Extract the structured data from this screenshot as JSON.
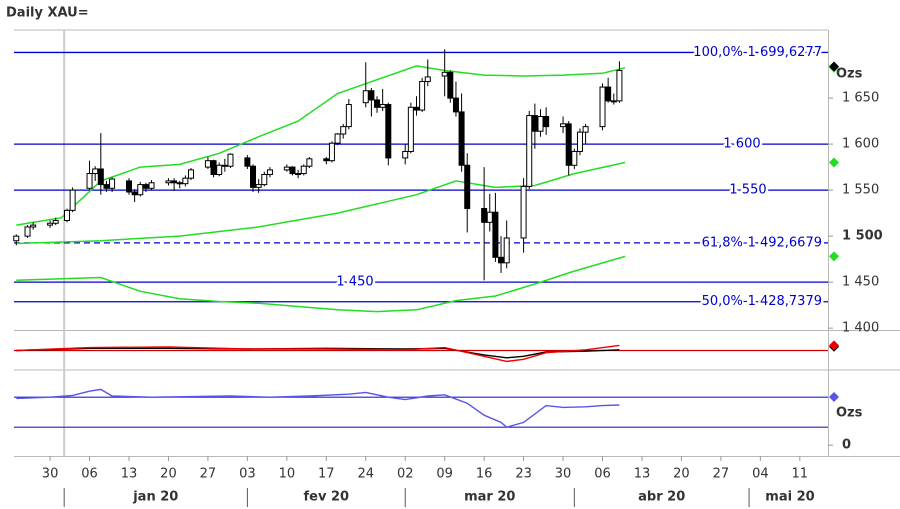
{
  "title": "Daily XAU=",
  "chart_data": [
    {
      "type": "candlestick",
      "x": [
        -6,
        -4,
        -3,
        0,
        1,
        3,
        4,
        7,
        8,
        9,
        10,
        11,
        14,
        15,
        16,
        17,
        18,
        21,
        22,
        23,
        24,
        25,
        28,
        29,
        30,
        31,
        32,
        35,
        36,
        37,
        38,
        39,
        42,
        43,
        44,
        45,
        46,
        49,
        50,
        51,
        52,
        53,
        56,
        57,
        58,
        59,
        60,
        63,
        64,
        65,
        66,
        67,
        70,
        71,
        72,
        73,
        74,
        77,
        78,
        79,
        80,
        81,
        84,
        85,
        86,
        87,
        88,
        91,
        92,
        93,
        94,
        95,
        98,
        99,
        100,
        101
      ],
      "open": [
        1495,
        1500,
        1510,
        1512,
        1514,
        1517,
        1528,
        1552,
        1568,
        1573,
        1556,
        1552,
        1560,
        1548,
        1545,
        1556,
        1552,
        1558,
        1560,
        1558,
        1557,
        1563,
        1575,
        1582,
        1567,
        1577,
        1576,
        1585,
        1576,
        1553,
        1556,
        1567,
        1572,
        1575,
        1568,
        1568,
        1576,
        1584,
        1582,
        1601,
        1611,
        1619,
        1645,
        1658,
        1648,
        1640,
        1643,
        1585,
        1592,
        1640,
        1637,
        1668,
        1674,
        1678,
        1650,
        1635,
        1577,
        1530,
        1515,
        1526,
        1477,
        1471,
        1498,
        1554,
        1631,
        1614,
        1630,
        1619,
        1622,
        1577,
        1592,
        1613,
        1619,
        1662,
        1647,
        1647
      ],
      "high": [
        1502,
        1512,
        1515,
        1517,
        1520,
        1530,
        1553,
        1582,
        1576,
        1612,
        1560,
        1564,
        1563,
        1551,
        1559,
        1558,
        1561,
        1563,
        1563,
        1560,
        1566,
        1574,
        1586,
        1583,
        1580,
        1584,
        1590,
        1588,
        1578,
        1562,
        1570,
        1575,
        1578,
        1576,
        1572,
        1578,
        1586,
        1586,
        1603,
        1612,
        1622,
        1649,
        1689,
        1661,
        1652,
        1660,
        1645,
        1600,
        1645,
        1652,
        1672,
        1692,
        1703,
        1680,
        1668,
        1655,
        1590,
        1575,
        1546,
        1547,
        1500,
        1517,
        1563,
        1636,
        1644,
        1638,
        1640,
        1630,
        1625,
        1595,
        1617,
        1622,
        1666,
        1672,
        1655,
        1690
      ],
      "low": [
        1490,
        1498,
        1507,
        1509,
        1512,
        1515,
        1526,
        1550,
        1560,
        1545,
        1548,
        1548,
        1545,
        1537,
        1543,
        1548,
        1550,
        1555,
        1549,
        1552,
        1554,
        1561,
        1573,
        1564,
        1565,
        1570,
        1574,
        1573,
        1548,
        1547,
        1554,
        1564,
        1570,
        1566,
        1563,
        1566,
        1574,
        1578,
        1580,
        1599,
        1606,
        1616,
        1640,
        1630,
        1634,
        1636,
        1577,
        1578,
        1590,
        1631,
        1635,
        1663,
        1652,
        1645,
        1630,
        1570,
        1504,
        1452,
        1505,
        1472,
        1460,
        1465,
        1482,
        1551,
        1595,
        1608,
        1610,
        1612,
        1566,
        1573,
        1588,
        1600,
        1615,
        1645,
        1643,
        1645
      ],
      "close": [
        1500,
        1510,
        1512,
        1514,
        1517,
        1528,
        1550,
        1568,
        1573,
        1556,
        1552,
        1562,
        1548,
        1545,
        1556,
        1552,
        1558,
        1560,
        1558,
        1557,
        1563,
        1572,
        1582,
        1567,
        1577,
        1576,
        1589,
        1576,
        1553,
        1556,
        1567,
        1572,
        1575,
        1568,
        1568,
        1576,
        1584,
        1582,
        1601,
        1611,
        1619,
        1643,
        1658,
        1648,
        1640,
        1643,
        1585,
        1592,
        1640,
        1637,
        1668,
        1673,
        1678,
        1650,
        1635,
        1577,
        1530,
        1515,
        1526,
        1477,
        1471,
        1498,
        1554,
        1631,
        1614,
        1630,
        1619,
        1622,
        1577,
        1592,
        1613,
        1619,
        1662,
        1647,
        1647,
        1680
      ],
      "bands": [
        {
          "color": "#22dd22",
          "x": [
            -6,
            2,
            9,
            16,
            23,
            30,
            37,
            44,
            51,
            58,
            65,
            70,
            77,
            84,
            91,
            98,
            102
          ],
          "values": [
            1512,
            1520,
            1560,
            1575,
            1578,
            1590,
            1608,
            1625,
            1655,
            1670,
            1685,
            1680,
            1675,
            1674,
            1675,
            1677,
            1683
          ]
        },
        {
          "color": "#22dd22",
          "x": [
            -6,
            9,
            23,
            37,
            51,
            58,
            65,
            72,
            79,
            86,
            93,
            102
          ],
          "values": [
            1492,
            1495,
            1500,
            1510,
            1525,
            1535,
            1545,
            1560,
            1553,
            1555,
            1568,
            1580
          ]
        },
        {
          "color": "#22dd22",
          "x": [
            -6,
            9,
            16,
            23,
            30,
            37,
            51,
            58,
            65,
            72,
            79,
            86,
            93,
            102
          ],
          "values": [
            1452,
            1455,
            1440,
            1432,
            1429,
            1427,
            1420,
            1418,
            1420,
            1430,
            1435,
            1448,
            1462,
            1478
          ]
        }
      ],
      "levels": [
        {
          "value": 1699.6277,
          "label": "100,0%-1 699,6277",
          "style": "solid"
        },
        {
          "value": 1600,
          "label": "1 600",
          "style": "solid"
        },
        {
          "value": 1550,
          "label": "1 550",
          "style": "solid"
        },
        {
          "value": 1492.6679,
          "label": "61,8%-1 492,6679",
          "style": "dashed"
        },
        {
          "value": 1450,
          "label": "1 450",
          "style": "solid"
        },
        {
          "value": 1428.7379,
          "label": "50,0%-1 428,7379",
          "style": "solid"
        }
      ],
      "level_color": "#0000cc",
      "ylim": [
        1398,
        1724
      ],
      "yticks": [
        {
          "value": 1650,
          "label": "1 650"
        },
        {
          "value": 1600,
          "label": "1 600"
        },
        {
          "value": 1550,
          "label": "1 550"
        },
        {
          "value": 1500,
          "label": "1 500"
        },
        {
          "value": 1450,
          "label": "1 450"
        },
        {
          "value": 1400,
          "label": "1 400"
        }
      ],
      "y_unit": "Ozs",
      "xlim": [
        -6.4,
        138
      ],
      "xticks": [
        {
          "value": 0,
          "label": "30"
        },
        {
          "value": 7,
          "label": "06"
        },
        {
          "value": 14,
          "label": "13"
        },
        {
          "value": 21,
          "label": "20"
        },
        {
          "value": 28,
          "label": "27"
        },
        {
          "value": 35,
          "label": "03"
        },
        {
          "value": 42,
          "label": "10"
        },
        {
          "value": 49,
          "label": "17"
        },
        {
          "value": 56,
          "label": "24"
        },
        {
          "value": 63,
          "label": "02"
        },
        {
          "value": 70,
          "label": "09"
        },
        {
          "value": 77,
          "label": "16"
        },
        {
          "value": 84,
          "label": "23"
        },
        {
          "value": 91,
          "label": "30"
        },
        {
          "value": 98,
          "label": "06"
        },
        {
          "value": 105,
          "label": "13"
        },
        {
          "value": 112,
          "label": "20"
        },
        {
          "value": 119,
          "label": "27"
        },
        {
          "value": 126,
          "label": "04"
        },
        {
          "value": 133,
          "label": "11"
        }
      ],
      "month_ticks": [
        {
          "value": 2.5,
          "label": "jan 20"
        },
        {
          "value": 35,
          "label": "fev 20"
        },
        {
          "value": 63,
          "label": "mar 20"
        },
        {
          "value": 93,
          "label": "abr 20"
        },
        {
          "value": 124,
          "label": "mai 20"
        }
      ]
    },
    {
      "type": "line",
      "series": [
        {
          "color": "#000000",
          "x": [
            -6,
            7,
            21,
            35,
            49,
            63,
            70,
            77,
            81,
            84,
            88,
            95,
            101
          ],
          "values": [
            0,
            1.5,
            1.5,
            1,
            1.5,
            1,
            1.5,
            -3,
            -5,
            -4,
            -1,
            -0.5,
            0.5
          ]
        },
        {
          "color": "#ee0000",
          "x": [
            -6,
            7,
            21,
            35,
            49,
            63,
            70,
            77,
            81,
            84,
            88,
            95,
            101
          ],
          "values": [
            0,
            2,
            2.5,
            1,
            1,
            0.5,
            2,
            -4,
            -7.5,
            -6,
            -1.5,
            0.5,
            3.5
          ]
        }
      ],
      "levels": [
        {
          "value": 0,
          "color": "#cc0000"
        }
      ],
      "ylim": [
        -12,
        12
      ]
    },
    {
      "type": "line",
      "series": [
        {
          "color": "#5555ee",
          "x": [
            -6,
            0,
            4,
            7,
            9,
            11,
            18,
            25,
            32,
            39,
            46,
            53,
            56,
            60,
            63,
            67,
            70,
            74,
            77,
            80,
            81,
            84,
            88,
            91,
            95,
            98,
            101
          ],
          "values": [
            78,
            80,
            83,
            90,
            93,
            82,
            80,
            81,
            82,
            80,
            82,
            85,
            88,
            80,
            76,
            82,
            84,
            70,
            50,
            38,
            30,
            38,
            66,
            63,
            64,
            66,
            67
          ]
        }
      ],
      "levels": [
        {
          "value": 80,
          "color": "#2222cc"
        },
        {
          "value": 30,
          "color": "#2222cc"
        }
      ],
      "ylim": [
        -18,
        122
      ],
      "yticks": [
        0
      ],
      "y_unit": "Ozs"
    }
  ]
}
